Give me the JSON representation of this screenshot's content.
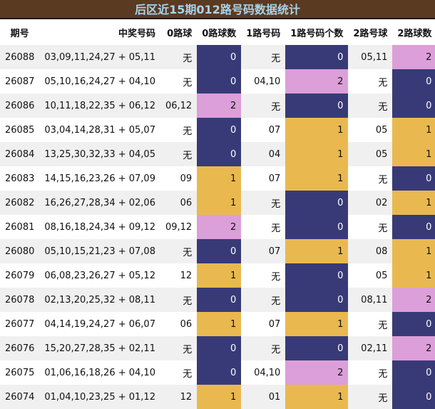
{
  "title": "后区近15期012路号码数据统计",
  "headers": [
    "期号",
    "中奖号码",
    "0路球",
    "0路球数",
    "1路号码",
    "1路号码个数",
    "2路号球",
    "2路球数"
  ],
  "colors": {
    "title_bg": "#5b3a22",
    "title_text": "#a7d4ec",
    "count_0": "#383a77",
    "count_1": "#e9b94f",
    "count_2": "#dc9fd9"
  },
  "rows": [
    {
      "issue": "26088",
      "numbers": "03,09,11,24,27 + 05,11",
      "r0": "无",
      "c0": "0",
      "r1": "无",
      "c1": "0",
      "r2": "05,11",
      "c2": "2"
    },
    {
      "issue": "26087",
      "numbers": "05,10,16,24,27 + 04,10",
      "r0": "无",
      "c0": "0",
      "r1": "04,10",
      "c1": "2",
      "r2": "无",
      "c2": "0"
    },
    {
      "issue": "26086",
      "numbers": "10,11,18,22,35 + 06,12",
      "r0": "06,12",
      "c0": "2",
      "r1": "无",
      "c1": "0",
      "r2": "无",
      "c2": "0"
    },
    {
      "issue": "26085",
      "numbers": "03,04,14,28,31 + 05,07",
      "r0": "无",
      "c0": "0",
      "r1": "07",
      "c1": "1",
      "r2": "05",
      "c2": "1"
    },
    {
      "issue": "26084",
      "numbers": "13,25,30,32,33 + 04,05",
      "r0": "无",
      "c0": "0",
      "r1": "04",
      "c1": "1",
      "r2": "05",
      "c2": "1"
    },
    {
      "issue": "26083",
      "numbers": "14,15,16,23,26 + 07,09",
      "r0": "09",
      "c0": "1",
      "r1": "07",
      "c1": "1",
      "r2": "无",
      "c2": "0"
    },
    {
      "issue": "26082",
      "numbers": "16,26,27,28,34 + 02,06",
      "r0": "06",
      "c0": "1",
      "r1": "无",
      "c1": "0",
      "r2": "02",
      "c2": "1"
    },
    {
      "issue": "26081",
      "numbers": "08,16,18,24,34 + 09,12",
      "r0": "09,12",
      "c0": "2",
      "r1": "无",
      "c1": "0",
      "r2": "无",
      "c2": "0"
    },
    {
      "issue": "26080",
      "numbers": "05,10,15,21,23 + 07,08",
      "r0": "无",
      "c0": "0",
      "r1": "07",
      "c1": "1",
      "r2": "08",
      "c2": "1"
    },
    {
      "issue": "26079",
      "numbers": "06,08,23,26,27 + 05,12",
      "r0": "12",
      "c0": "1",
      "r1": "无",
      "c1": "0",
      "r2": "05",
      "c2": "1"
    },
    {
      "issue": "26078",
      "numbers": "02,13,20,25,32 + 08,11",
      "r0": "无",
      "c0": "0",
      "r1": "无",
      "c1": "0",
      "r2": "08,11",
      "c2": "2"
    },
    {
      "issue": "26077",
      "numbers": "04,14,19,24,27 + 06,07",
      "r0": "06",
      "c0": "1",
      "r1": "07",
      "c1": "1",
      "r2": "无",
      "c2": "0"
    },
    {
      "issue": "26076",
      "numbers": "15,20,27,28,35 + 02,11",
      "r0": "无",
      "c0": "0",
      "r1": "无",
      "c1": "0",
      "r2": "02,11",
      "c2": "2"
    },
    {
      "issue": "26075",
      "numbers": "01,06,16,18,26 + 04,10",
      "r0": "无",
      "c0": "0",
      "r1": "04,10",
      "c1": "2",
      "r2": "无",
      "c2": "0"
    },
    {
      "issue": "26074",
      "numbers": "01,04,10,23,25 + 01,12",
      "r0": "12",
      "c0": "1",
      "r1": "01",
      "c1": "1",
      "r2": "无",
      "c2": "0"
    }
  ]
}
